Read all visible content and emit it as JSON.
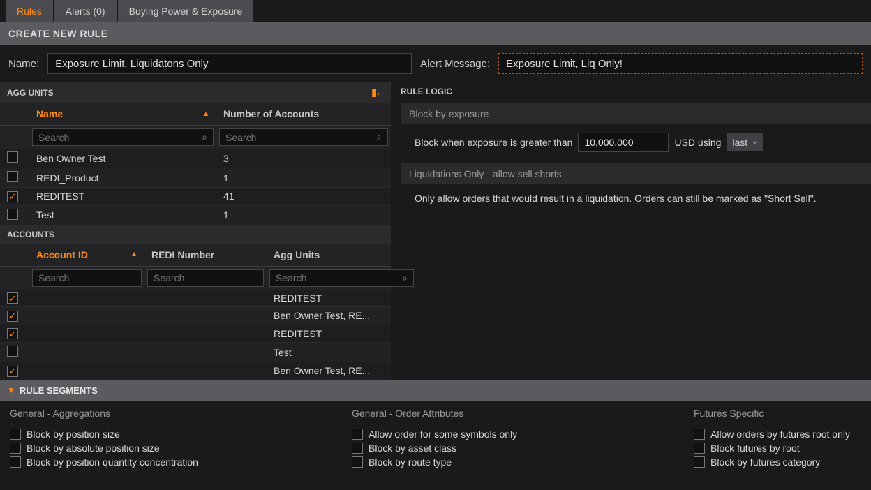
{
  "tabs": [
    {
      "label": "Rules",
      "active": true
    },
    {
      "label": "Alerts (0)",
      "active": false
    },
    {
      "label": "Buying Power & Exposure",
      "active": false
    }
  ],
  "createHeader": "CREATE NEW RULE",
  "nameLabel": "Name:",
  "nameValue": "Exposure Limit, Liquidatons Only",
  "alertLabel": "Alert Message:",
  "alertValue": "Exposure Limit, Liq Only!",
  "aggUnits": {
    "title": "AGG UNITS",
    "columns": [
      "Name",
      "Number of Accounts"
    ],
    "searchPlaceholder": "Search",
    "rows": [
      {
        "checked": false,
        "name": "Ben Owner Test",
        "num": "3"
      },
      {
        "checked": false,
        "name": "REDI_Product",
        "num": "1"
      },
      {
        "checked": true,
        "name": "REDITEST",
        "num": "41"
      },
      {
        "checked": false,
        "name": "Test",
        "num": "1"
      }
    ]
  },
  "accounts": {
    "title": "ACCOUNTS",
    "columns": [
      "Account ID",
      "REDI Number",
      "Agg Units"
    ],
    "searchPlaceholder": "Search",
    "rows": [
      {
        "checked": true,
        "id": "",
        "redi": "",
        "agg": "REDITEST"
      },
      {
        "checked": true,
        "id": "",
        "redi": "",
        "agg": "Ben Owner Test, RE..."
      },
      {
        "checked": true,
        "id": "",
        "redi": "",
        "agg": "REDITEST"
      },
      {
        "checked": false,
        "id": "",
        "redi": "",
        "agg": "Test"
      },
      {
        "checked": true,
        "id": "",
        "redi": "",
        "agg": "Ben Owner Test, RE..."
      }
    ]
  },
  "ruleLogic": {
    "title": "RULE LOGIC",
    "blockByExposure": {
      "header": "Block by exposure",
      "textBefore": "Block when exposure is greater than",
      "value": "10,000,000",
      "textAfter": "USD using",
      "select": "last"
    },
    "liquidations": {
      "header": "Liquidations Only - allow sell shorts",
      "body": "Only allow orders that would result in a liquidation. Orders can still be marked as \"Short Sell\"."
    }
  },
  "segments": {
    "title": "RULE SEGMENTS",
    "cols": [
      {
        "title": "General - Aggregations",
        "items": [
          "Block by position size",
          "Block by absolute position size",
          "Block by position quantity concentration"
        ]
      },
      {
        "title": "General - Order Attributes",
        "items": [
          "Allow order for some symbols only",
          "Block by asset class",
          "Block by route type"
        ]
      },
      {
        "title": "Futures Specific",
        "items": [
          "Allow orders by futures root only",
          "Block futures by root",
          "Block by futures category"
        ]
      }
    ]
  }
}
